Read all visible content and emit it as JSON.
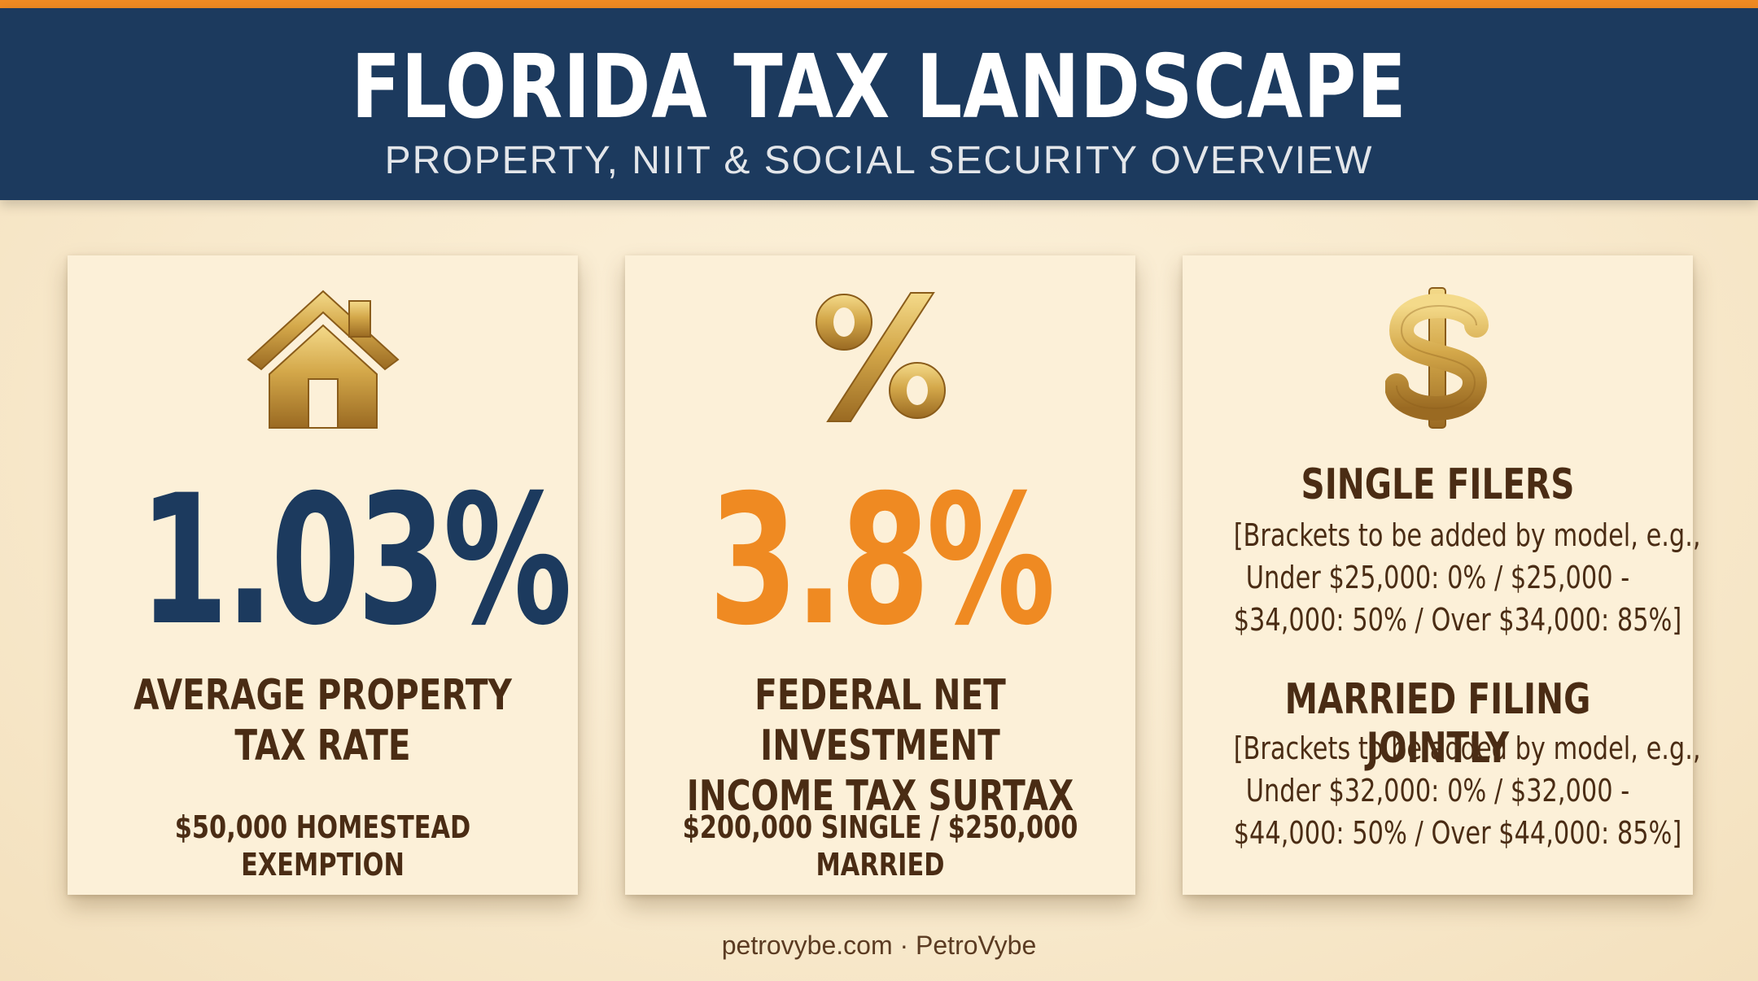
{
  "header": {
    "title": "FLORIDA TAX LANDSCAPE",
    "subtitle": "PROPERTY, NIIT & SOCIAL SECURITY OVERVIEW"
  },
  "colors": {
    "accent_orange": "#ef8a22",
    "navy": "#1c3a5e",
    "brown_text": "#4a2c14",
    "gold": "#c8a040",
    "card_background": "#fcf0d8"
  },
  "cards": [
    {
      "icon": "house-icon",
      "value": "1.03%",
      "label_lines": [
        "AVERAGE PROPERTY",
        "TAX RATE"
      ],
      "detail": "$50,000 HOMESTEAD EXEMPTION"
    },
    {
      "icon": "percent-icon",
      "value": "3.8%",
      "label_lines": [
        "FEDERAL NET INVESTMENT",
        "INCOME TAX SURTAX"
      ],
      "detail": "$200,000 SINGLE / $250,000 MARRIED"
    },
    {
      "icon": "dollar-icon",
      "sections": [
        {
          "heading": "SINGLE FILERS",
          "lines": [
            "[Brackets to be added by model, e.g.,",
            "Under $25,000: 0% / $25,000 -",
            "$34,000: 50% / Over $34,000: 85%]"
          ]
        },
        {
          "heading": "MARRIED FILING JOINTLY",
          "lines": [
            "[Brackets to be added by model, e.g.,",
            "Under $32,000: 0% / $32,000 -",
            "$44,000: 50% / Over $44,000: 85%]"
          ]
        }
      ]
    }
  ],
  "footer": {
    "text": "petrovybe.com · PetroVybe"
  }
}
